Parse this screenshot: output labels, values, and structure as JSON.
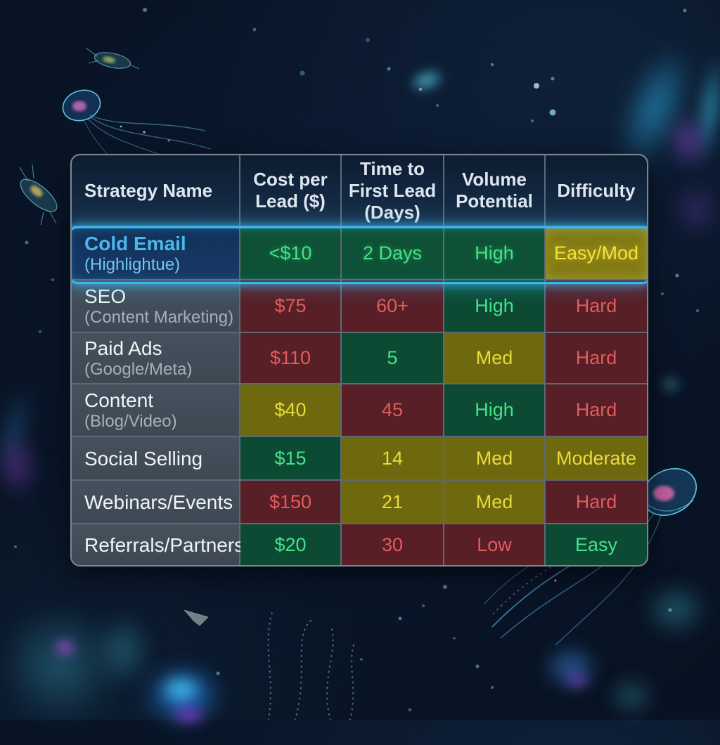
{
  "palette": {
    "green_bg": "#0d4a34",
    "green_text": "#46e288",
    "yellow_bg": "#6e690f",
    "yellow_text": "#e8dc3c",
    "red_bg": "#581f27",
    "red_text": "#e25c5c",
    "highlight_border": "#38b7f2",
    "highlight_name": "#4db6ea",
    "highlight_sub": "#70c6f0",
    "label_sub": "#a6b0ba"
  },
  "table": {
    "headers": [
      "Strategy Name",
      "Cost per Lead ($)",
      "Time to First Lead (Days)",
      "Volume Potential",
      "Difficulty"
    ],
    "rows": [
      {
        "name": "Cold Email",
        "sub": "(Highlightue)",
        "highlighted": true,
        "cells": [
          {
            "text": "<$10",
            "tone": "green"
          },
          {
            "text": "2 Days",
            "tone": "green"
          },
          {
            "text": "High",
            "tone": "green"
          },
          {
            "text": "Easy/Mod",
            "tone": "yellow"
          }
        ]
      },
      {
        "name": "SEO",
        "sub": "(Content Marketing)",
        "highlighted": false,
        "cells": [
          {
            "text": "$75",
            "tone": "red"
          },
          {
            "text": "60+",
            "tone": "red"
          },
          {
            "text": "High",
            "tone": "green"
          },
          {
            "text": "Hard",
            "tone": "red"
          }
        ]
      },
      {
        "name": "Paid Ads",
        "sub": "(Google/Meta)",
        "highlighted": false,
        "cells": [
          {
            "text": "$110",
            "tone": "red"
          },
          {
            "text": "5",
            "tone": "green"
          },
          {
            "text": "Med",
            "tone": "yellow"
          },
          {
            "text": "Hard",
            "tone": "red"
          }
        ]
      },
      {
        "name": "Content",
        "sub": "(Blog/Video)",
        "highlighted": false,
        "cells": [
          {
            "text": "$40",
            "tone": "yellow"
          },
          {
            "text": "45",
            "tone": "red"
          },
          {
            "text": "High",
            "tone": "green"
          },
          {
            "text": "Hard",
            "tone": "red"
          }
        ]
      },
      {
        "name": "Social Selling",
        "sub": "",
        "highlighted": false,
        "cells": [
          {
            "text": "$15",
            "tone": "green"
          },
          {
            "text": "14",
            "tone": "yellow"
          },
          {
            "text": "Med",
            "tone": "yellow"
          },
          {
            "text": "Moderate",
            "tone": "yellow"
          }
        ]
      },
      {
        "name": "Webinars/Events",
        "sub": "",
        "highlighted": false,
        "cells": [
          {
            "text": "$150",
            "tone": "red"
          },
          {
            "text": "21",
            "tone": "yellow"
          },
          {
            "text": "Med",
            "tone": "yellow"
          },
          {
            "text": "Hard",
            "tone": "red"
          }
        ]
      },
      {
        "name": "Referrals/Partners",
        "sub": "",
        "highlighted": false,
        "cells": [
          {
            "text": "$20",
            "tone": "green"
          },
          {
            "text": "30",
            "tone": "red"
          },
          {
            "text": "Low",
            "tone": "red"
          },
          {
            "text": "Easy",
            "tone": "green"
          }
        ]
      }
    ]
  }
}
